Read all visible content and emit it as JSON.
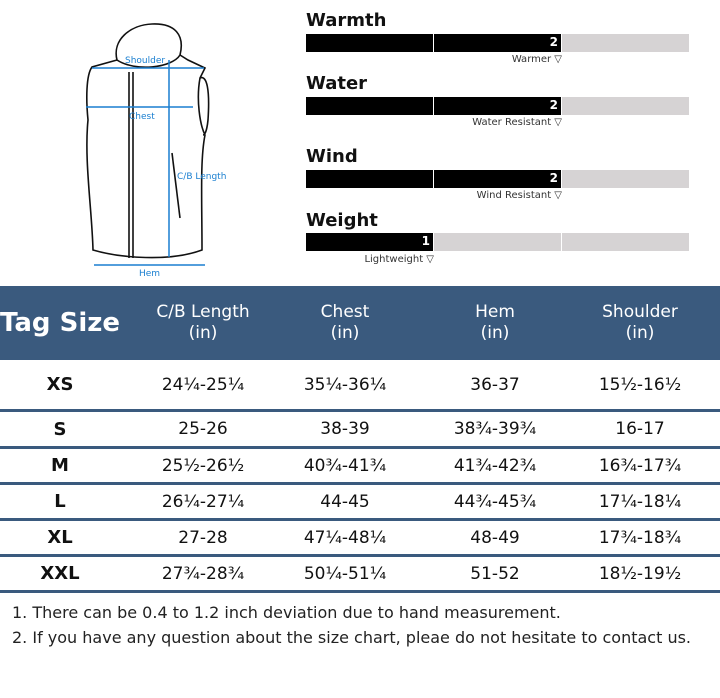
{
  "diagram": {
    "labels": {
      "shoulder": "Shoulder",
      "chest": "Chest",
      "length": "C/B Length",
      "hem": "Hem"
    }
  },
  "ratings": [
    {
      "title": "Warmth",
      "value": 2,
      "max": 3,
      "label": "Warmer ▽"
    },
    {
      "title": "Water",
      "value": 2,
      "max": 3,
      "label": "Water Resistant ▽"
    },
    {
      "title": "Wind",
      "value": 2,
      "max": 3,
      "label": "Wind Resistant ▽"
    },
    {
      "title": "Weight",
      "value": 1,
      "max": 3,
      "label": "Lightweight ▽"
    }
  ],
  "table": {
    "headers": [
      [
        "Tag Size",
        ""
      ],
      [
        "C/B Length",
        "(in)"
      ],
      [
        "Chest",
        "(in)"
      ],
      [
        "Hem",
        "(in)"
      ],
      [
        "Shoulder",
        "(in)"
      ]
    ],
    "rows": [
      [
        "XS",
        "24¼-25¼",
        "35¼-36¼",
        "36-37",
        "15½-16½"
      ],
      [
        "S",
        "25-26",
        "38-39",
        "38¾-39¾",
        "16-17"
      ],
      [
        "M",
        "25½-26½",
        "40¾-41¾",
        "41¾-42¾",
        "16¾-17¾"
      ],
      [
        "L",
        "26¼-27¼",
        "44-45",
        "44¾-45¾",
        "17¼-18¼"
      ],
      [
        "XL",
        "27-28",
        "47¼-48¼",
        "48-49",
        "17¾-18¾"
      ],
      [
        "XXL",
        "27¾-28¾",
        "50¼-51¼",
        "51-52",
        "18½-19½"
      ]
    ]
  },
  "notes": [
    "1. There can be 0.4 to 1.2 inch deviation due to hand measurement.",
    "2. If you have any question about the size chart, pleae do not hesitate to contact us."
  ],
  "colors": {
    "header": "#3a5a7e",
    "measure": "#1a7fd0"
  }
}
